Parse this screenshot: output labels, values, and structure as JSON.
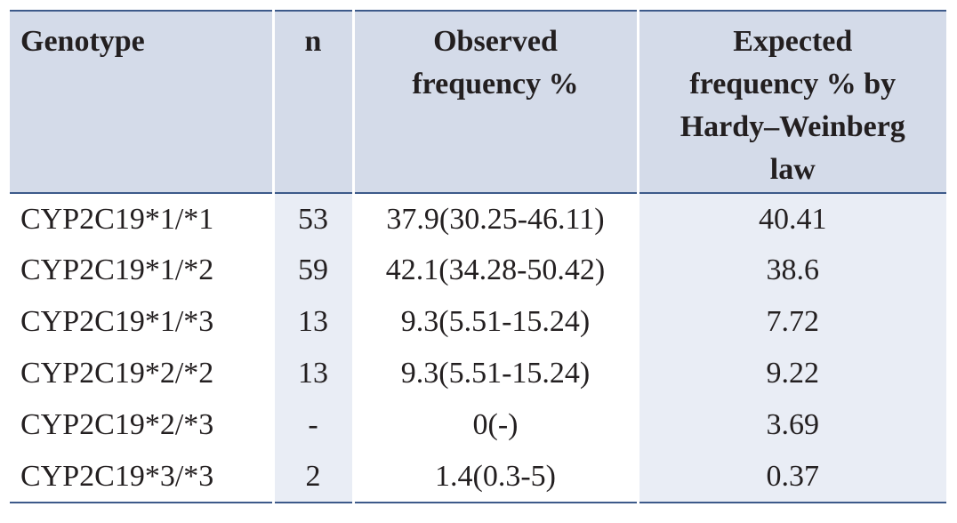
{
  "table": {
    "headers": {
      "genotype": "Genotype",
      "n": "n",
      "observed_line1": "Observed",
      "observed_line2": "frequency %",
      "expected_line1": "Expected",
      "expected_line2": "frequency % by",
      "expected_line3": "Hardy–Weinberg",
      "expected_line4": "law"
    },
    "rows": [
      {
        "genotype": "CYP2C19*1/*1",
        "n": "53",
        "observed": "37.9(30.25-46.11)",
        "expected": "40.41"
      },
      {
        "genotype": "CYP2C19*1/*2",
        "n": "59",
        "observed": "42.1(34.28-50.42)",
        "expected": "38.6"
      },
      {
        "genotype": "CYP2C19*1/*3",
        "n": "13",
        "observed": "9.3(5.51-15.24)",
        "expected": "7.72"
      },
      {
        "genotype": "CYP2C19*2/*2",
        "n": "13",
        "observed": "9.3(5.51-15.24)",
        "expected": "9.22"
      },
      {
        "genotype": "CYP2C19*2/*3",
        "n": "-",
        "observed": "0(-)",
        "expected": "3.69"
      },
      {
        "genotype": "CYP2C19*3/*3",
        "n": "2",
        "observed": "1.4(0.3-5)",
        "expected": "0.37"
      }
    ]
  },
  "colors": {
    "header_bg": "#d4dbe9",
    "shaded_col_bg": "#e9edf5",
    "rule": "#3d5a8a",
    "text": "#231f20"
  }
}
